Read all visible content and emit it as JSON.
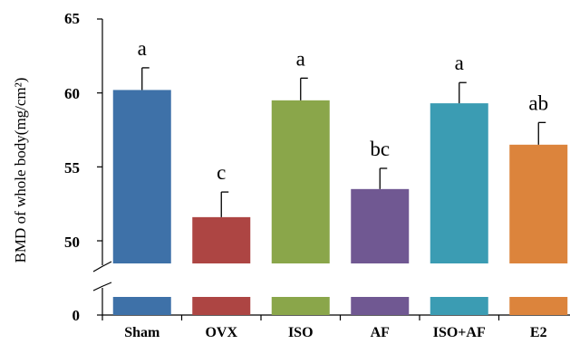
{
  "chart_data": {
    "type": "bar",
    "ylabel": "BMD of whole body(mg/cm²)",
    "categories": [
      "Sham",
      "OVX",
      "ISO",
      "AF",
      "ISO+AF",
      "E2"
    ],
    "values": [
      60.2,
      51.6,
      59.5,
      53.5,
      59.3,
      56.5
    ],
    "errors": [
      1.5,
      1.7,
      1.5,
      1.4,
      1.4,
      1.5
    ],
    "significance_labels": [
      "a",
      "c",
      "a",
      "bc",
      "a",
      "ab"
    ],
    "colors": [
      "#3e71a8",
      "#ad4543",
      "#8aa64a",
      "#705892",
      "#3b9cb3",
      "#dc843c"
    ],
    "yticks_upper": [
      "50",
      "55",
      "60",
      "65"
    ],
    "ytick_lower": "0",
    "ylim_upper": [
      48.5,
      65
    ],
    "y_axis_break": true,
    "grid": false,
    "legend": "none"
  }
}
